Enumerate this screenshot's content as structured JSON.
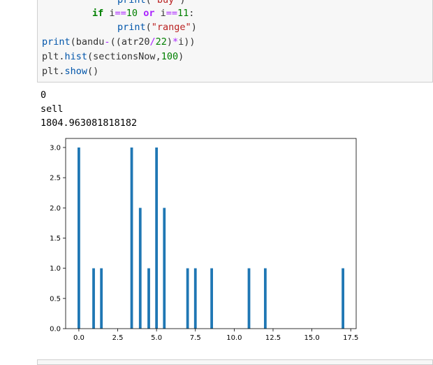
{
  "code": {
    "line0": {
      "fn": "print",
      "open": "(",
      "str": "\"buy\"",
      "close": ")"
    },
    "line1": {
      "kw_if": "if",
      "a": " i",
      "op1": "==",
      "n1": "10",
      "kw_or": "or",
      "b": " i",
      "op2": "==",
      "n2": "11",
      "colon": ":"
    },
    "line2": {
      "fn": "print",
      "open": "(",
      "str": "\"range\"",
      "close": ")"
    },
    "line3": {
      "fn": "print",
      "p1": "(bandu",
      "op_minus": "-",
      "p2": "((atr20",
      "op_div": "/",
      "n22": "22",
      "p3": ")",
      "op_mul": "*",
      "p4": "i))"
    },
    "line4": {
      "a": "plt.",
      "fn": "hist",
      "b": "(sectionsNow,",
      "n": "100",
      "c": ")"
    },
    "line5": {
      "a": "plt.",
      "fn": "show",
      "b": "()"
    }
  },
  "output": {
    "lines": [
      "0",
      "sell",
      "1804.963081818182"
    ]
  },
  "chart_data": {
    "type": "bar",
    "title": "",
    "xlabel": "",
    "ylabel": "",
    "xlim": [
      -0.85,
      17.85
    ],
    "ylim": [
      0,
      3.15
    ],
    "bar_width": 0.17,
    "xticks": [
      0.0,
      2.5,
      5.0,
      7.5,
      10.0,
      12.5,
      15.0,
      17.5
    ],
    "xtick_labels": [
      "0.0",
      "2.5",
      "5.0",
      "7.5",
      "10.0",
      "12.5",
      "15.0",
      "17.5"
    ],
    "yticks": [
      0.0,
      0.5,
      1.0,
      1.5,
      2.0,
      2.5,
      3.0
    ],
    "ytick_labels": [
      "0.0",
      "0.5",
      "1.0",
      "1.5",
      "2.0",
      "2.5",
      "3.0"
    ],
    "bar_color": "#1f77b4",
    "bars": [
      {
        "x": 0.0,
        "value": 3
      },
      {
        "x": 0.95,
        "value": 1
      },
      {
        "x": 1.45,
        "value": 1
      },
      {
        "x": 3.4,
        "value": 3
      },
      {
        "x": 3.95,
        "value": 2
      },
      {
        "x": 4.5,
        "value": 1
      },
      {
        "x": 5.0,
        "value": 3
      },
      {
        "x": 5.5,
        "value": 2
      },
      {
        "x": 7.0,
        "value": 1
      },
      {
        "x": 7.5,
        "value": 1
      },
      {
        "x": 8.55,
        "value": 1
      },
      {
        "x": 10.95,
        "value": 1
      },
      {
        "x": 12.0,
        "value": 1
      },
      {
        "x": 17.0,
        "value": 1
      }
    ]
  }
}
